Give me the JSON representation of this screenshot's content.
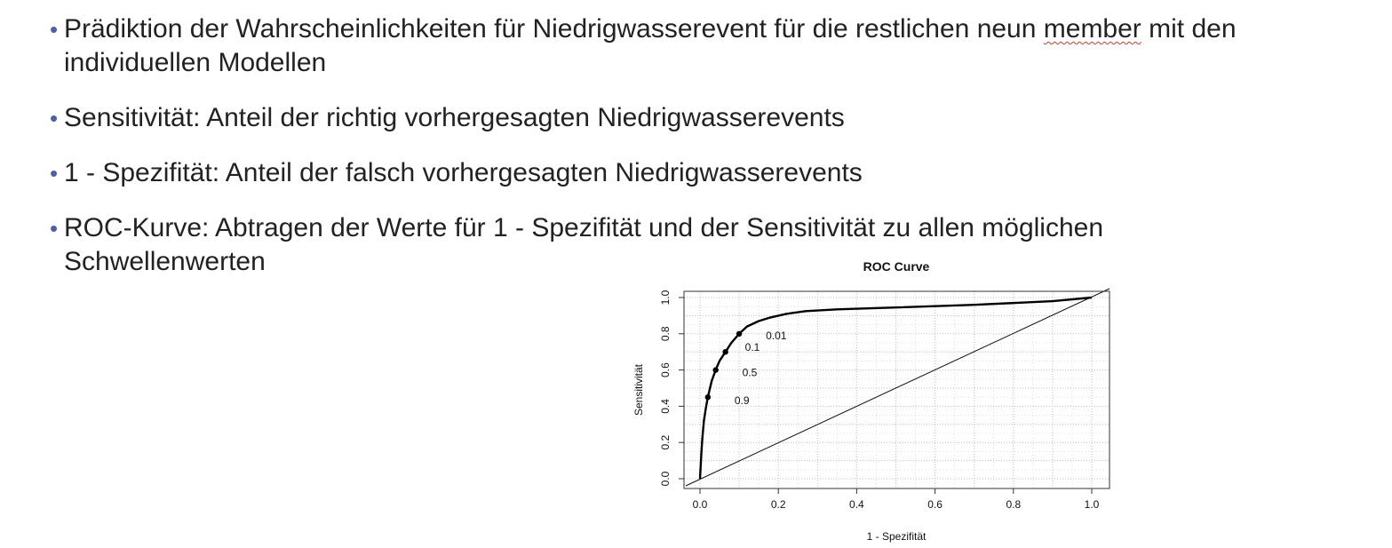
{
  "bullets": [
    {
      "before": "Prädiktion der Wahrscheinlichkeiten für Niedrigwasserevent für die restlichen neun ",
      "flagged": "member",
      "after": " mit den individuellen Modellen"
    },
    {
      "before": "Sensitivität: Anteil der richtig vorhergesagten Niedrigwasserevents",
      "flagged": "",
      "after": ""
    },
    {
      "before": "1 - Spezifität: Anteil der falsch vorhergesagten Niedrigwasserevents",
      "flagged": "",
      "after": ""
    },
    {
      "before": "ROC-Kurve: Abtragen der Werte für 1 - Spezifität und der Sensitivität zu allen möglichen Schwellenwerten",
      "flagged": "",
      "after": ""
    }
  ],
  "bullet_symbol": "•",
  "colors": {
    "bullet": "#4a5fae",
    "spellcheck": "#d43a2f",
    "grid": "#c8c8c8"
  },
  "chart_data": {
    "type": "line",
    "title": "ROC Curve",
    "xlabel": "1 - Spezifität",
    "ylabel": "Sensitivität",
    "xlim": [
      0,
      1
    ],
    "ylim": [
      0,
      1
    ],
    "xticks": [
      "0.0",
      "0.2",
      "0.4",
      "0.6",
      "0.8",
      "1.0"
    ],
    "yticks": [
      "0.0",
      "0.2",
      "0.4",
      "0.6",
      "0.8",
      "1.0"
    ],
    "grid": true,
    "series": [
      {
        "x": [
          0,
          0.003,
          0.006,
          0.01,
          0.015,
          0.02,
          0.03,
          0.04,
          0.05,
          0.065,
          0.08,
          0.1,
          0.12,
          0.15,
          0.18,
          0.22,
          0.27,
          0.35,
          0.5,
          0.7,
          0.9,
          1.0
        ],
        "y": [
          0,
          0.12,
          0.22,
          0.32,
          0.39,
          0.45,
          0.54,
          0.6,
          0.65,
          0.7,
          0.75,
          0.8,
          0.84,
          0.87,
          0.89,
          0.91,
          0.925,
          0.935,
          0.945,
          0.96,
          0.98,
          1.0
        ]
      },
      {
        "x": [
          0,
          1
        ],
        "y": [
          0,
          1
        ]
      }
    ],
    "thresholds": [
      {
        "label": "0.9",
        "x": 0.02,
        "y": 0.45
      },
      {
        "label": "0.5",
        "x": 0.04,
        "y": 0.6
      },
      {
        "label": "0.1",
        "x": 0.065,
        "y": 0.7
      },
      {
        "label": "0.01",
        "x": 0.1,
        "y": 0.8
      }
    ]
  }
}
